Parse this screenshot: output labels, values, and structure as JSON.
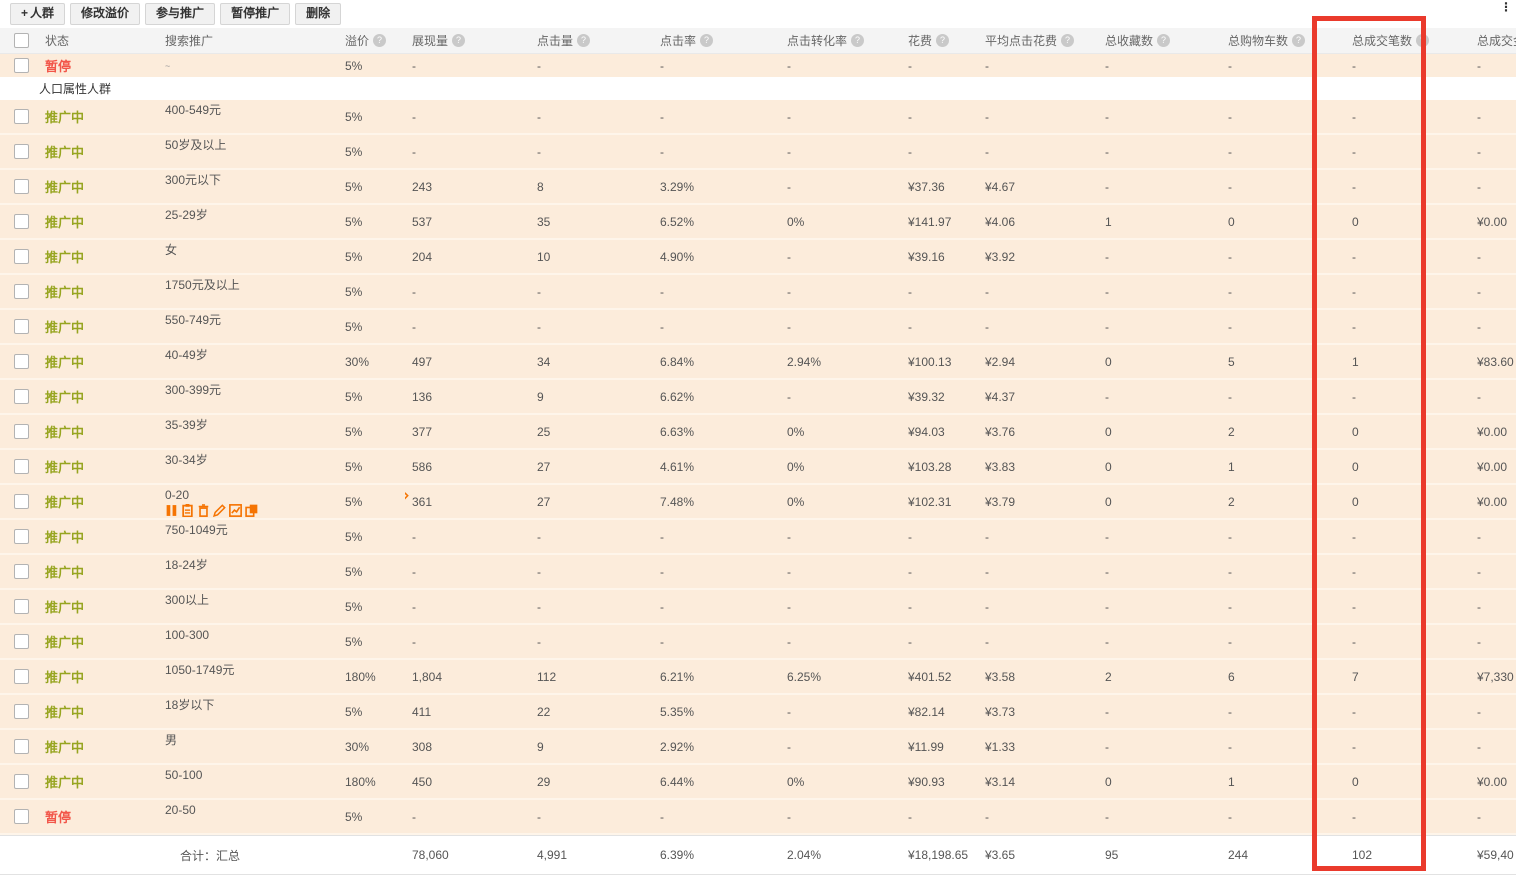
{
  "ui": {
    "overflow_glyph": "⋮",
    "highlight_color": "#ea3a2c",
    "accent_orange": "#f57403"
  },
  "toolbar": {
    "buttons": [
      {
        "label": "人群",
        "icon": "plus-icon"
      },
      {
        "label": "修改溢价"
      },
      {
        "label": "参与推广"
      },
      {
        "label": "暂停推广"
      },
      {
        "label": "删除"
      }
    ]
  },
  "table": {
    "columns": [
      {
        "label": "",
        "type": "checkbox"
      },
      {
        "label": "状态"
      },
      {
        "label": "搜索推广"
      },
      {
        "label": "溢价",
        "info": true
      },
      {
        "label": "展现量",
        "info": true
      },
      {
        "label": "点击量",
        "info": true
      },
      {
        "label": "点击率",
        "info": true
      },
      {
        "label": "点击转化率",
        "info": true
      },
      {
        "label": "花费",
        "info": true
      },
      {
        "label": "平均点击花费",
        "info": true
      },
      {
        "label": "总收藏数",
        "info": true
      },
      {
        "label": "总购物车数",
        "info": true
      },
      {
        "label": "总成交笔数",
        "info": true
      },
      {
        "label": "总成交金额",
        "info": true
      }
    ],
    "partial_top_row": {
      "status": "暂停",
      "status_type": "paused",
      "name_fragment": "~",
      "premium": "5%",
      "values": [
        "-",
        "-",
        "-",
        "-",
        "-",
        "-",
        "-",
        "-",
        "-",
        "-"
      ]
    },
    "section_label": "人口属性人群",
    "rows": [
      {
        "status": "推广中",
        "status_type": "active",
        "name": "400-549元",
        "premium": "5%",
        "imp": "-",
        "clicks": "-",
        "ctr": "-",
        "cvr": "-",
        "cost": "-",
        "ppc": "-",
        "fav": "-",
        "cart": "-",
        "orders": "-",
        "amount": "-"
      },
      {
        "status": "推广中",
        "status_type": "active",
        "name": "50岁及以上",
        "premium": "5%",
        "imp": "-",
        "clicks": "-",
        "ctr": "-",
        "cvr": "-",
        "cost": "-",
        "ppc": "-",
        "fav": "-",
        "cart": "-",
        "orders": "-",
        "amount": "-"
      },
      {
        "status": "推广中",
        "status_type": "active",
        "name": "300元以下",
        "premium": "5%",
        "imp": "243",
        "clicks": "8",
        "ctr": "3.29%",
        "cvr": "-",
        "cost": "¥37.36",
        "ppc": "¥4.67",
        "fav": "-",
        "cart": "-",
        "orders": "-",
        "amount": "-"
      },
      {
        "status": "推广中",
        "status_type": "active",
        "name": "25-29岁",
        "premium": "5%",
        "imp": "537",
        "clicks": "35",
        "ctr": "6.52%",
        "cvr": "0%",
        "cost": "¥141.97",
        "ppc": "¥4.06",
        "fav": "1",
        "cart": "0",
        "orders": "0",
        "amount": "¥0.00"
      },
      {
        "status": "推广中",
        "status_type": "active",
        "name": "女",
        "premium": "5%",
        "imp": "204",
        "clicks": "10",
        "ctr": "4.90%",
        "cvr": "-",
        "cost": "¥39.16",
        "ppc": "¥3.92",
        "fav": "-",
        "cart": "-",
        "orders": "-",
        "amount": "-"
      },
      {
        "status": "推广中",
        "status_type": "active",
        "name": "1750元及以上",
        "premium": "5%",
        "imp": "-",
        "clicks": "-",
        "ctr": "-",
        "cvr": "-",
        "cost": "-",
        "ppc": "-",
        "fav": "-",
        "cart": "-",
        "orders": "-",
        "amount": "-"
      },
      {
        "status": "推广中",
        "status_type": "active",
        "name": "550-749元",
        "premium": "5%",
        "imp": "-",
        "clicks": "-",
        "ctr": "-",
        "cvr": "-",
        "cost": "-",
        "ppc": "-",
        "fav": "-",
        "cart": "-",
        "orders": "-",
        "amount": "-"
      },
      {
        "status": "推广中",
        "status_type": "active",
        "name": "40-49岁",
        "premium": "30%",
        "imp": "497",
        "clicks": "34",
        "ctr": "6.84%",
        "cvr": "2.94%",
        "cost": "¥100.13",
        "ppc": "¥2.94",
        "fav": "0",
        "cart": "5",
        "orders": "1",
        "amount": "¥83.60"
      },
      {
        "status": "推广中",
        "status_type": "active",
        "name": "300-399元",
        "premium": "5%",
        "imp": "136",
        "clicks": "9",
        "ctr": "6.62%",
        "cvr": "-",
        "cost": "¥39.32",
        "ppc": "¥4.37",
        "fav": "-",
        "cart": "-",
        "orders": "-",
        "amount": "-"
      },
      {
        "status": "推广中",
        "status_type": "active",
        "name": "35-39岁",
        "premium": "5%",
        "imp": "377",
        "clicks": "25",
        "ctr": "6.63%",
        "cvr": "0%",
        "cost": "¥94.03",
        "ppc": "¥3.76",
        "fav": "0",
        "cart": "2",
        "orders": "0",
        "amount": "¥0.00"
      },
      {
        "status": "推广中",
        "status_type": "active",
        "name": "30-34岁",
        "premium": "5%",
        "imp": "586",
        "clicks": "27",
        "ctr": "4.61%",
        "cvr": "0%",
        "cost": "¥103.28",
        "ppc": "¥3.83",
        "fav": "0",
        "cart": "1",
        "orders": "0",
        "amount": "¥0.00"
      },
      {
        "status": "推广中",
        "status_type": "active",
        "name": "0-20",
        "premium": "5%",
        "imp": "361",
        "clicks": "27",
        "ctr": "7.48%",
        "cvr": "0%",
        "cost": "¥102.31",
        "ppc": "¥3.79",
        "fav": "0",
        "cart": "2",
        "orders": "0",
        "amount": "¥0.00",
        "hover": true,
        "hover_icons": [
          "pause-icon",
          "clipboard-icon",
          "trash-icon",
          "pencil-icon",
          "chart-icon",
          "copy-icon"
        ]
      },
      {
        "status": "推广中",
        "status_type": "active",
        "name": "750-1049元",
        "premium": "5%",
        "imp": "-",
        "clicks": "-",
        "ctr": "-",
        "cvr": "-",
        "cost": "-",
        "ppc": "-",
        "fav": "-",
        "cart": "-",
        "orders": "-",
        "amount": "-"
      },
      {
        "status": "推广中",
        "status_type": "active",
        "name": "18-24岁",
        "premium": "5%",
        "imp": "-",
        "clicks": "-",
        "ctr": "-",
        "cvr": "-",
        "cost": "-",
        "ppc": "-",
        "fav": "-",
        "cart": "-",
        "orders": "-",
        "amount": "-"
      },
      {
        "status": "推广中",
        "status_type": "active",
        "name": "300以上",
        "premium": "5%",
        "imp": "-",
        "clicks": "-",
        "ctr": "-",
        "cvr": "-",
        "cost": "-",
        "ppc": "-",
        "fav": "-",
        "cart": "-",
        "orders": "-",
        "amount": "-"
      },
      {
        "status": "推广中",
        "status_type": "active",
        "name": "100-300",
        "premium": "5%",
        "imp": "-",
        "clicks": "-",
        "ctr": "-",
        "cvr": "-",
        "cost": "-",
        "ppc": "-",
        "fav": "-",
        "cart": "-",
        "orders": "-",
        "amount": "-"
      },
      {
        "status": "推广中",
        "status_type": "active",
        "name": "1050-1749元",
        "premium": "180%",
        "imp": "1,804",
        "clicks": "112",
        "ctr": "6.21%",
        "cvr": "6.25%",
        "cost": "¥401.52",
        "ppc": "¥3.58",
        "fav": "2",
        "cart": "6",
        "orders": "7",
        "amount": "¥7,330"
      },
      {
        "status": "推广中",
        "status_type": "active",
        "name": "18岁以下",
        "premium": "5%",
        "imp": "411",
        "clicks": "22",
        "ctr": "5.35%",
        "cvr": "-",
        "cost": "¥82.14",
        "ppc": "¥3.73",
        "fav": "-",
        "cart": "-",
        "orders": "-",
        "amount": "-"
      },
      {
        "status": "推广中",
        "status_type": "active",
        "name": "男",
        "premium": "30%",
        "imp": "308",
        "clicks": "9",
        "ctr": "2.92%",
        "cvr": "-",
        "cost": "¥11.99",
        "ppc": "¥1.33",
        "fav": "-",
        "cart": "-",
        "orders": "-",
        "amount": "-"
      },
      {
        "status": "推广中",
        "status_type": "active",
        "name": "50-100",
        "premium": "180%",
        "imp": "450",
        "clicks": "29",
        "ctr": "6.44%",
        "cvr": "0%",
        "cost": "¥90.93",
        "ppc": "¥3.14",
        "fav": "0",
        "cart": "1",
        "orders": "0",
        "amount": "¥0.00"
      },
      {
        "status": "暂停",
        "status_type": "paused",
        "name": "20-50",
        "premium": "5%",
        "imp": "-",
        "clicks": "-",
        "ctr": "-",
        "cvr": "-",
        "cost": "-",
        "ppc": "-",
        "fav": "-",
        "cart": "-",
        "orders": "-",
        "amount": "-"
      }
    ],
    "footer": {
      "label": "合计：汇总",
      "imp": "78,060",
      "clicks": "4,991",
      "ctr": "6.39%",
      "cvr": "2.04%",
      "cost": "¥18,198.65",
      "ppc": "¥3.65",
      "fav": "95",
      "cart": "244",
      "orders": "102",
      "amount": "¥59,40"
    }
  }
}
